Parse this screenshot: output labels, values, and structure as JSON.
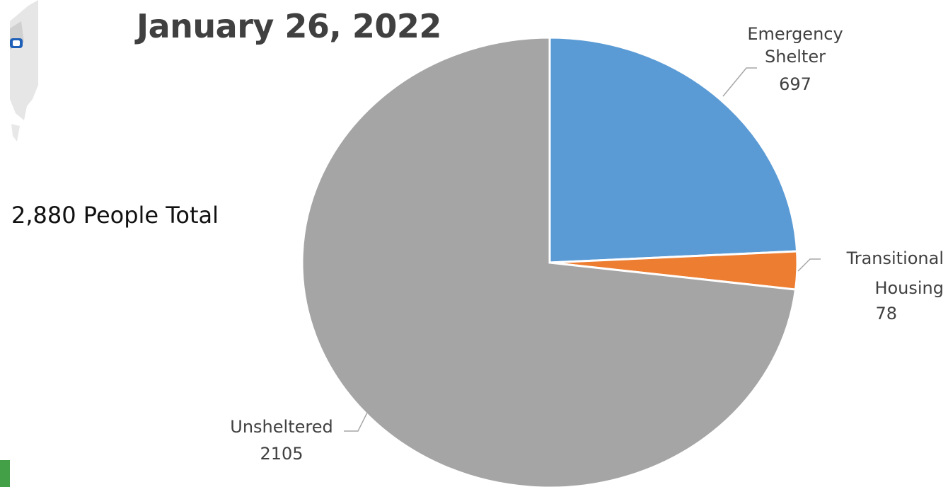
{
  "title": "January 26, 2022",
  "total_label": "2,880 People Total",
  "chart_data": {
    "type": "pie",
    "title": "January 26, 2022",
    "slices": [
      {
        "label_lines": [
          "Emergency",
          "Shelter"
        ],
        "value": 697,
        "value_text": "697",
        "color": "#5b9bd5"
      },
      {
        "label_lines": [
          "Transitional",
          "Housing"
        ],
        "value": 78,
        "value_text": "78",
        "color": "#ed7d31"
      },
      {
        "label_lines": [
          "Unsheltered"
        ],
        "value": 2105,
        "value_text": "2105",
        "color": "#a5a5a5"
      }
    ],
    "start_angle_deg": 0,
    "direction": "clockwise",
    "legend": "none",
    "data_labels": "outside-with-leader-lines"
  }
}
